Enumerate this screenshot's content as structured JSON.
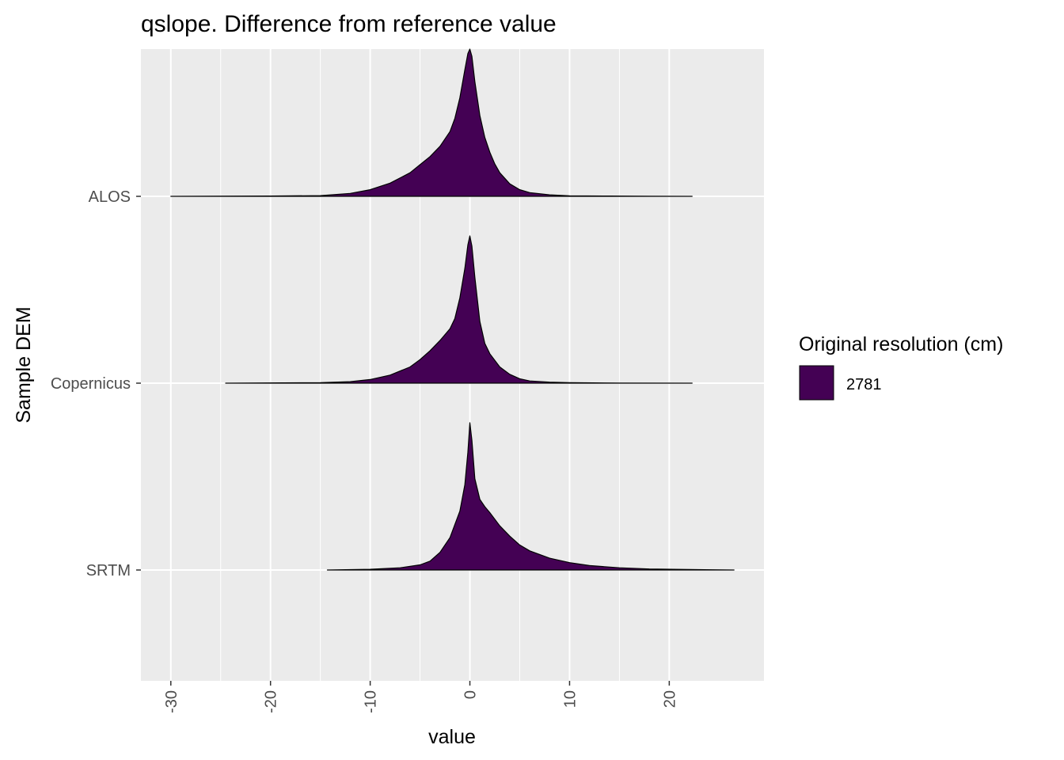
{
  "chart_data": {
    "type": "ridgeline-density",
    "title": "qslope. Difference from reference value",
    "xlabel": "value",
    "ylabel": "Sample DEM",
    "xlim": [
      -33,
      29.5
    ],
    "x_ticks": [
      -30,
      -20,
      -10,
      0,
      10,
      20
    ],
    "x_tick_labels": [
      "-30",
      "-20",
      "-10",
      "0",
      "10",
      "20"
    ],
    "categories": [
      "ALOS",
      "Copernicus",
      "SRTM"
    ],
    "grid": true,
    "fill_color": "#440154",
    "panel_color": "#ebebeb",
    "legend": {
      "title": "Original resolution (cm)",
      "position": "right",
      "entries": [
        {
          "label": "2781",
          "color": "#440154"
        }
      ]
    },
    "series": [
      {
        "category": "ALOS",
        "x": [
          -30.0,
          -20.0,
          -15.0,
          -12.0,
          -10.0,
          -8.0,
          -6.0,
          -5.0,
          -4.0,
          -3.0,
          -2.0,
          -1.5,
          -1.0,
          -0.5,
          -0.2,
          0.0,
          0.2,
          0.5,
          1.0,
          1.5,
          2.0,
          2.5,
          3.0,
          4.0,
          5.0,
          6.0,
          8.0,
          10.0,
          14.0,
          18.0,
          22.3
        ],
        "density": [
          0.0,
          0.002,
          0.005,
          0.02,
          0.045,
          0.09,
          0.16,
          0.215,
          0.27,
          0.34,
          0.44,
          0.53,
          0.67,
          0.86,
          0.97,
          1.0,
          0.95,
          0.78,
          0.55,
          0.4,
          0.3,
          0.22,
          0.16,
          0.085,
          0.045,
          0.025,
          0.01,
          0.004,
          0.002,
          0.001,
          0.0
        ]
      },
      {
        "category": "Copernicus",
        "x": [
          -24.5,
          -15.0,
          -12.0,
          -10.0,
          -8.0,
          -6.0,
          -5.0,
          -4.0,
          -3.0,
          -2.0,
          -1.5,
          -1.0,
          -0.5,
          -0.2,
          0.0,
          0.2,
          0.5,
          1.0,
          1.5,
          2.0,
          3.0,
          4.0,
          5.0,
          6.0,
          8.0,
          10.0,
          15.0,
          22.3
        ],
        "density": [
          0.0,
          0.003,
          0.01,
          0.025,
          0.055,
          0.11,
          0.16,
          0.22,
          0.29,
          0.37,
          0.44,
          0.58,
          0.78,
          0.94,
          1.0,
          0.93,
          0.72,
          0.42,
          0.27,
          0.2,
          0.11,
          0.06,
          0.03,
          0.015,
          0.007,
          0.003,
          0.001,
          0.0
        ]
      },
      {
        "category": "SRTM",
        "x": [
          -14.3,
          -10.0,
          -7.0,
          -5.0,
          -4.0,
          -3.0,
          -2.0,
          -1.0,
          -0.5,
          -0.2,
          0.0,
          0.2,
          0.5,
          1.0,
          1.5,
          2.0,
          3.0,
          4.0,
          5.0,
          6.0,
          8.0,
          10.0,
          12.0,
          15.0,
          18.0,
          22.0,
          26.5
        ],
        "density": [
          0.0,
          0.005,
          0.015,
          0.035,
          0.06,
          0.12,
          0.22,
          0.4,
          0.58,
          0.8,
          1.0,
          0.88,
          0.62,
          0.48,
          0.43,
          0.39,
          0.3,
          0.23,
          0.17,
          0.13,
          0.08,
          0.05,
          0.03,
          0.015,
          0.007,
          0.003,
          0.0
        ]
      }
    ]
  }
}
